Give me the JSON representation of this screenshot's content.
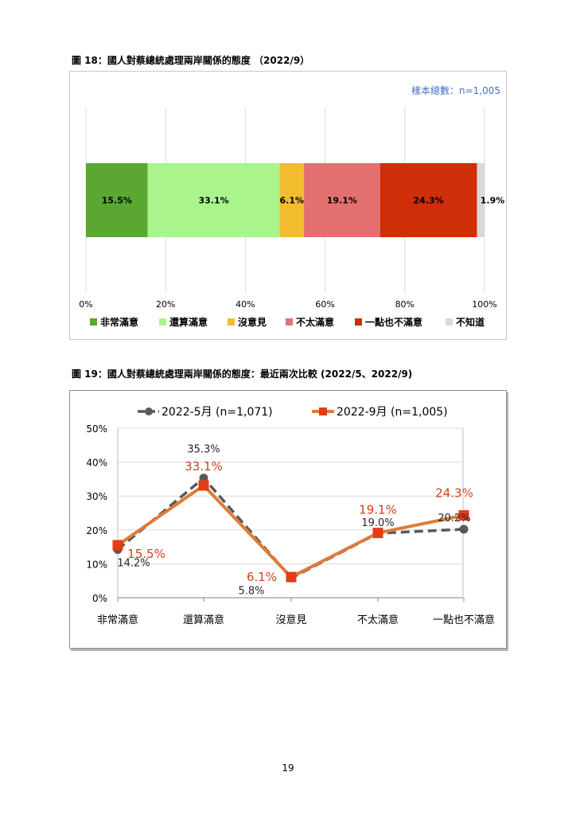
{
  "page_number": "19",
  "figure18": {
    "caption": "圖 18：國人對蔡總統處理兩岸關係的態度 （2022/9）",
    "sample_note": "樣本總數：n=1,005"
  },
  "figure19": {
    "caption": "圖 19：國人對蔡總統處理兩岸關係的態度：最近兩次比較 (2022/5、2022/9)"
  },
  "colors": {
    "very_satisfied": "#5aa832",
    "somewhat_satisfied": "#a9f58c",
    "no_opinion": "#f2bc2e",
    "somewhat_dissatisfied": "#e57070",
    "very_dissatisfied": "#d02e08",
    "dont_know": "#d9d9d9",
    "series_may": "#595959",
    "series_sep": "#e07b39",
    "label_sep": "#d2401c",
    "sample_note": "#4472c4"
  },
  "chart_data": [
    {
      "type": "bar",
      "orientation": "horizontal-stacked-100",
      "categories": [
        "非常滿意",
        "還算滿意",
        "沒意見",
        "不太滿意",
        "一點也不滿意",
        "不知道"
      ],
      "values": [
        15.5,
        33.1,
        6.1,
        19.1,
        24.3,
        1.9
      ],
      "data_labels": [
        "15.5%",
        "33.1%",
        "6.1%",
        "19.1%",
        "24.3%",
        "1.9%"
      ],
      "x_ticks": [
        "0%",
        "20%",
        "40%",
        "60%",
        "80%",
        "100%"
      ],
      "xlim": [
        0,
        100
      ],
      "grid": true,
      "legend": "bottom"
    },
    {
      "type": "line",
      "categories": [
        "非常滿意",
        "還算滿意",
        "沒意見",
        "不太滿意",
        "一點也不滿意"
      ],
      "series": [
        {
          "name": "2022-5月 (n=1,071)",
          "values": [
            14.2,
            35.3,
            5.8,
            19.0,
            20.2
          ],
          "labels": [
            "14.2%",
            "35.3%",
            "5.8%",
            "19.0%",
            "20.2%"
          ]
        },
        {
          "name": "2022-9月 (n=1,005)",
          "values": [
            15.5,
            33.1,
            6.1,
            19.1,
            24.3
          ],
          "labels": [
            "15.5%",
            "33.1%",
            "6.1%",
            "19.1%",
            "24.3%"
          ]
        }
      ],
      "y_ticks": [
        "0%",
        "10%",
        "20%",
        "30%",
        "40%",
        "50%"
      ],
      "ylim": [
        0,
        50
      ],
      "grid": true,
      "legend": "top"
    }
  ]
}
